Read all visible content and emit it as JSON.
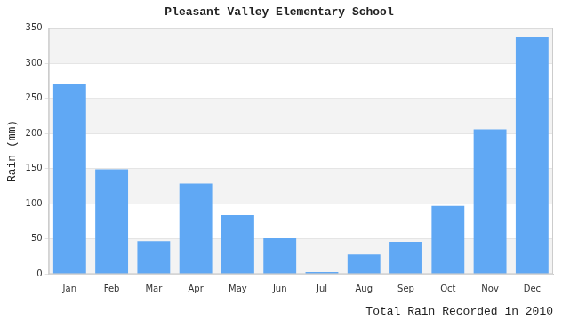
{
  "chart_data": {
    "type": "bar",
    "title": "Pleasant Valley Elementary School",
    "ylabel": "Rain (mm)",
    "xlabel": "Total Rain Recorded in 2010",
    "categories": [
      "Jan",
      "Feb",
      "Mar",
      "Apr",
      "May",
      "Jun",
      "Jul",
      "Aug",
      "Sep",
      "Oct",
      "Nov",
      "Dec"
    ],
    "values": [
      270,
      149,
      47,
      129,
      84,
      51,
      3,
      28,
      46,
      97,
      206,
      337
    ],
    "color": "#60a8f4",
    "ylim": [
      0,
      350
    ],
    "yticks": [
      0,
      50,
      100,
      150,
      200,
      250,
      300,
      350
    ],
    "grid": true
  }
}
